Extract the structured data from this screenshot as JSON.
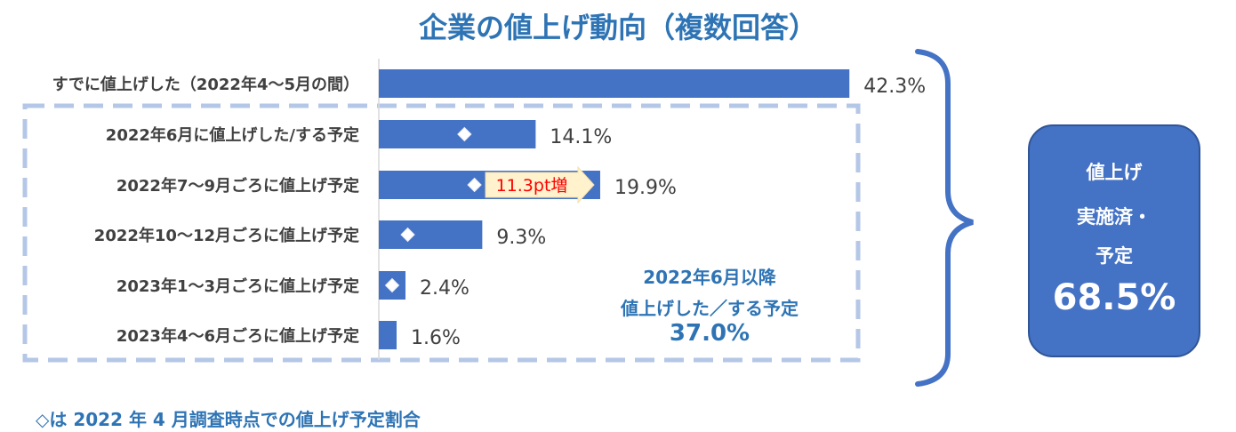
{
  "title": "企業の値上げ動向（複数回答）",
  "chart_data": {
    "type": "bar",
    "orientation": "horizontal",
    "categories": [
      "すでに値上げした（2022年4～5月の間）",
      "2022年6月に値上げした/する予定",
      "2022年7～9月ごろに値上げ予定",
      "2022年10～12月ごろに値上げ予定",
      "2023年1～3月ごろに値上げ予定",
      "2023年4～6月ごろに値上げ予定"
    ],
    "values": [
      42.3,
      14.1,
      19.9,
      9.3,
      2.4,
      1.6
    ],
    "value_labels": [
      "42.3%",
      "14.1%",
      "19.9%",
      "9.3%",
      "2.4%",
      "1.6%"
    ],
    "april_survey_values": [
      null,
      7.7,
      8.6,
      2.6,
      1.2,
      null
    ],
    "xlim": [
      0,
      45
    ],
    "bar_color": "#4472C4",
    "annotation": {
      "text": "11.3pt増",
      "category_index": 2,
      "color": "#FF0000",
      "fill": "#FFF2CC"
    }
  },
  "group_note": {
    "line1": "2022年6月以降",
    "line2": "値上げした／する予定",
    "value": "37.0%"
  },
  "summary_box": {
    "line1": "値上げ",
    "line2": "実施済・",
    "line3": "予定",
    "value": "68.5%"
  },
  "footnote": "◇は 2022 年 4 月調査時点での値上げ予定割合",
  "colors": {
    "accent": "#2E74B5",
    "bar": "#4472C4",
    "dash": "#B4C7E7",
    "brace": "#4472C4"
  }
}
